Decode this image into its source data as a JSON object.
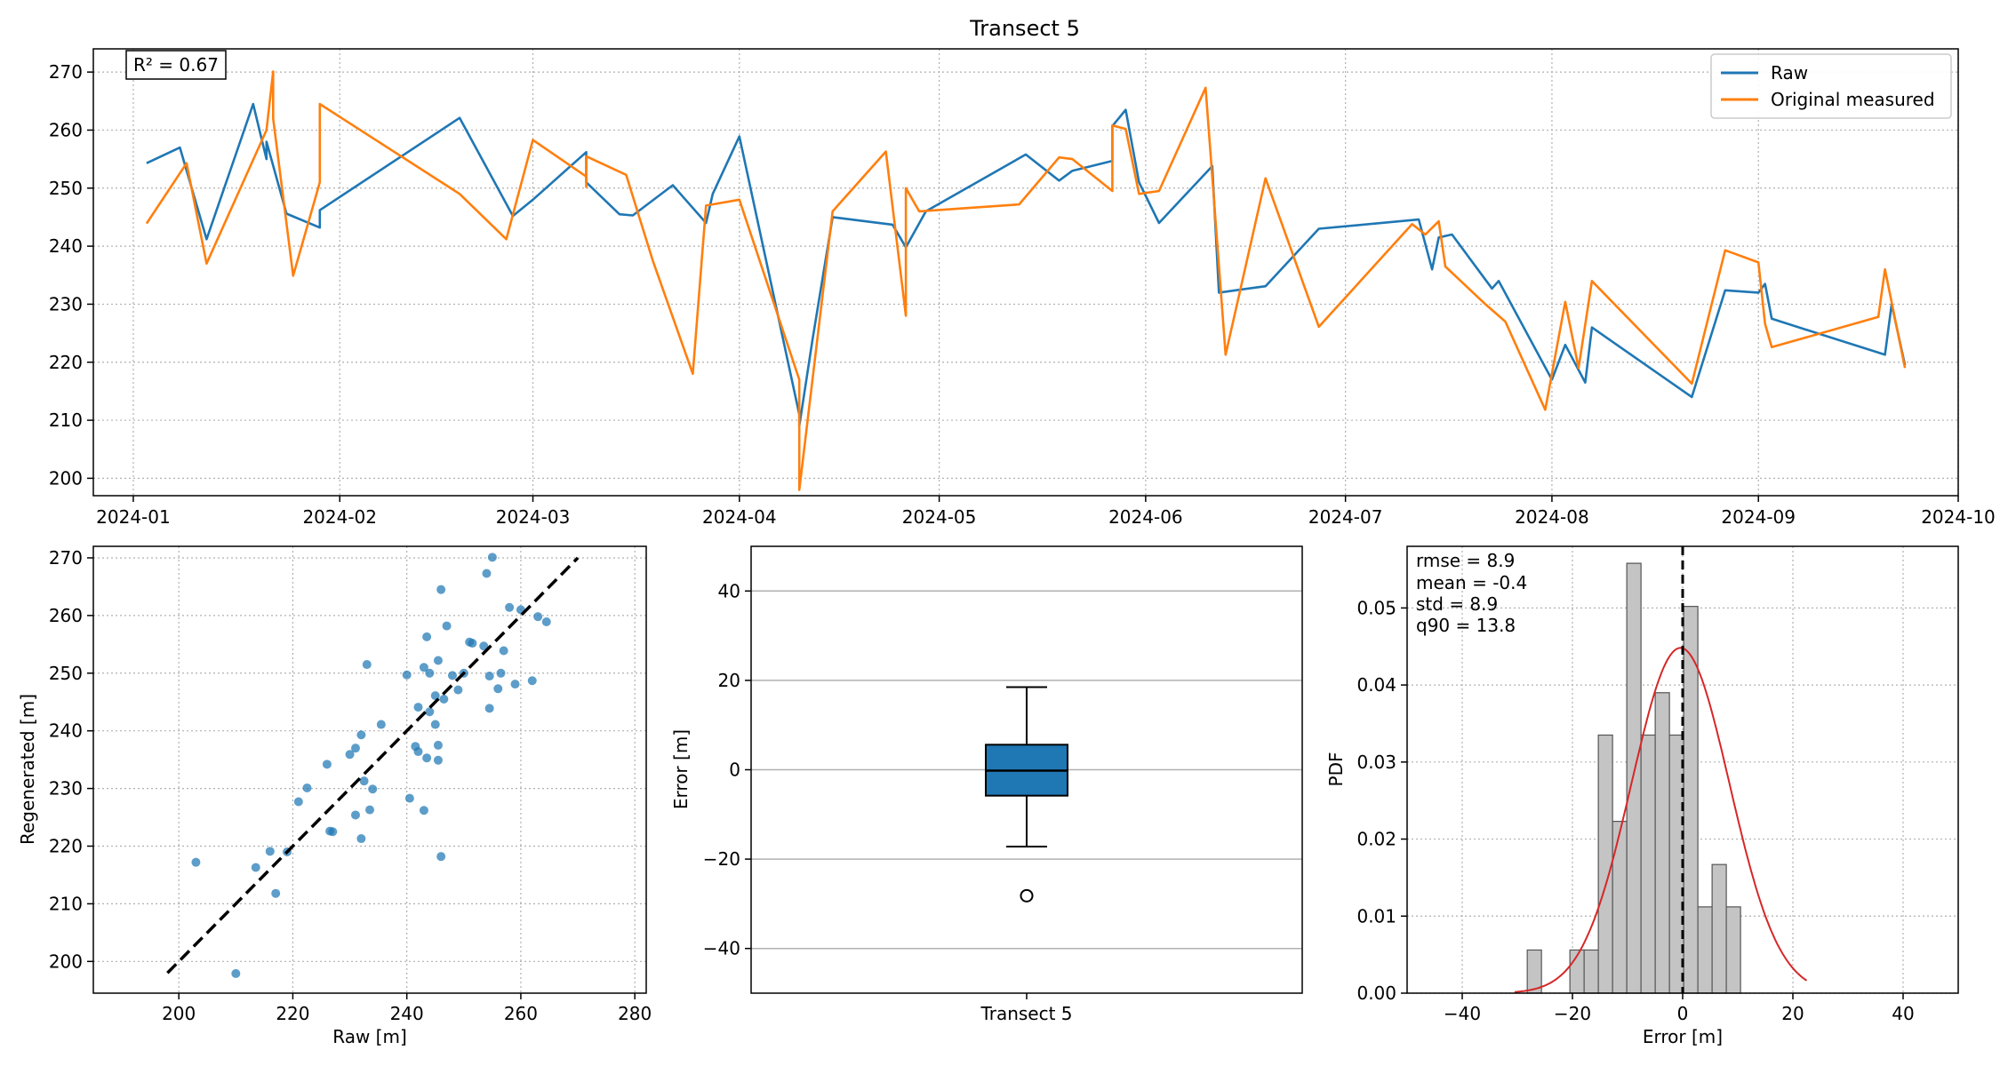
{
  "figure": {
    "title": "Transect 5"
  },
  "chart_data": [
    {
      "type": "line",
      "title": "Transect 5",
      "xlabel": "",
      "ylabel": "",
      "x_axis": "date",
      "xlim": [
        "2023-12-26",
        "2024-10-01"
      ],
      "ylim": [
        197,
        274
      ],
      "xticks": [
        "2024-01-01",
        "2024-02-01",
        "2024-03-01",
        "2024-04-01",
        "2024-05-01",
        "2024-06-01",
        "2024-07-01",
        "2024-08-01",
        "2024-09-01",
        "2024-10-01"
      ],
      "xtick_labels": [
        "2024-01",
        "2024-02",
        "2024-03",
        "2024-04",
        "2024-05",
        "2024-06",
        "2024-07",
        "2024-08",
        "2024-09",
        "2024-10"
      ],
      "yticks": [
        200,
        210,
        220,
        230,
        240,
        250,
        260,
        270
      ],
      "grid": true,
      "legend": "upper right",
      "annotation": "R² = 0.67",
      "series": [
        {
          "name": "Raw",
          "color": "#1f77b4",
          "points": [
            [
              "2024-01-03",
              254.3
            ],
            [
              "2024-01-08",
              257.0
            ],
            [
              "2024-01-12",
              241.2
            ],
            [
              "2024-01-19",
              264.5
            ],
            [
              "2024-01-21",
              255.0
            ],
            [
              "2024-01-21",
              258.0
            ],
            [
              "2024-01-24",
              245.6
            ],
            [
              "2024-01-29",
              243.2
            ],
            [
              "2024-01-29",
              246.2
            ],
            [
              "2024-02-19",
              262.1
            ],
            [
              "2024-02-27",
              245.2
            ],
            [
              "2024-03-01",
              248.0
            ],
            [
              "2024-03-09",
              256.2
            ],
            [
              "2024-03-09",
              251.0
            ],
            [
              "2024-03-14",
              245.5
            ],
            [
              "2024-03-16",
              245.3
            ],
            [
              "2024-03-22",
              250.5
            ],
            [
              "2024-03-27",
              244.0
            ],
            [
              "2024-03-28",
              249.0
            ],
            [
              "2024-04-01",
              258.9
            ],
            [
              "2024-04-10",
              211.0
            ],
            [
              "2024-04-10",
              209.0
            ],
            [
              "2024-04-12",
              224.0
            ],
            [
              "2024-04-15",
              245.0
            ],
            [
              "2024-04-24",
              243.7
            ],
            [
              "2024-04-26",
              239.8
            ],
            [
              "2024-04-29",
              246.0
            ],
            [
              "2024-05-14",
              255.8
            ],
            [
              "2024-05-19",
              251.3
            ],
            [
              "2024-05-21",
              253.0
            ],
            [
              "2024-05-27",
              254.7
            ],
            [
              "2024-05-27",
              260.7
            ],
            [
              "2024-05-29",
              263.5
            ],
            [
              "2024-05-31",
              251.0
            ],
            [
              "2024-06-03",
              244.0
            ],
            [
              "2024-06-11",
              253.8
            ],
            [
              "2024-06-12",
              232.0
            ],
            [
              "2024-06-19",
              233.1
            ],
            [
              "2024-06-27",
              243.0
            ],
            [
              "2024-07-12",
              244.6
            ],
            [
              "2024-07-14",
              236.0
            ],
            [
              "2024-07-15",
              241.5
            ],
            [
              "2024-07-17",
              242.0
            ],
            [
              "2024-07-23",
              232.7
            ],
            [
              "2024-07-24",
              234.0
            ],
            [
              "2024-08-01",
              217.0
            ],
            [
              "2024-08-03",
              223.0
            ],
            [
              "2024-08-06",
              216.5
            ],
            [
              "2024-08-07",
              226.0
            ],
            [
              "2024-08-22",
              214.0
            ],
            [
              "2024-08-27",
              232.4
            ],
            [
              "2024-09-01",
              232.0
            ],
            [
              "2024-09-02",
              233.5
            ],
            [
              "2024-09-03",
              227.5
            ],
            [
              "2024-09-20",
              221.3
            ],
            [
              "2024-09-21",
              230.0
            ],
            [
              "2024-09-23",
              219.5
            ]
          ]
        },
        {
          "name": "Original measured",
          "color": "#ff7f0e",
          "points": [
            [
              "2024-01-03",
              243.9
            ],
            [
              "2024-01-09",
              254.3
            ],
            [
              "2024-01-12",
              237.0
            ],
            [
              "2024-01-21",
              260.0
            ],
            [
              "2024-01-22",
              270.1
            ],
            [
              "2024-01-22",
              262.0
            ],
            [
              "2024-01-25",
              234.9
            ],
            [
              "2024-01-29",
              251.0
            ],
            [
              "2024-01-29",
              264.5
            ],
            [
              "2024-02-19",
              249.0
            ],
            [
              "2024-02-26",
              241.2
            ],
            [
              "2024-03-01",
              258.3
            ],
            [
              "2024-03-09",
              252.0
            ],
            [
              "2024-03-09",
              250.2
            ],
            [
              "2024-03-09",
              255.5
            ],
            [
              "2024-03-15",
              252.3
            ],
            [
              "2024-03-19",
              237.5
            ],
            [
              "2024-03-25",
              218.0
            ],
            [
              "2024-03-27",
              247.0
            ],
            [
              "2024-04-01",
              248.0
            ],
            [
              "2024-04-10",
              217.0
            ],
            [
              "2024-04-10",
              198.0
            ],
            [
              "2024-04-15",
              246.0
            ],
            [
              "2024-04-23",
              256.3
            ],
            [
              "2024-04-26",
              228.0
            ],
            [
              "2024-04-26",
              250.0
            ],
            [
              "2024-04-28",
              246.0
            ],
            [
              "2024-05-13",
              247.2
            ],
            [
              "2024-05-19",
              255.3
            ],
            [
              "2024-05-21",
              255.0
            ],
            [
              "2024-05-27",
              249.5
            ],
            [
              "2024-05-27",
              260.8
            ],
            [
              "2024-05-29",
              260.2
            ],
            [
              "2024-05-31",
              249.0
            ],
            [
              "2024-06-03",
              249.5
            ],
            [
              "2024-06-10",
              267.3
            ],
            [
              "2024-06-13",
              221.3
            ],
            [
              "2024-06-19",
              251.7
            ],
            [
              "2024-06-27",
              226.1
            ],
            [
              "2024-07-11",
              243.8
            ],
            [
              "2024-07-13",
              242.0
            ],
            [
              "2024-07-15",
              244.3
            ],
            [
              "2024-07-16",
              236.5
            ],
            [
              "2024-07-22",
              230.0
            ],
            [
              "2024-07-25",
              227.0
            ],
            [
              "2024-07-31",
              211.8
            ],
            [
              "2024-08-03",
              230.4
            ],
            [
              "2024-08-05",
              219.0
            ],
            [
              "2024-08-07",
              234.0
            ],
            [
              "2024-08-22",
              216.3
            ],
            [
              "2024-08-27",
              239.3
            ],
            [
              "2024-09-01",
              237.2
            ],
            [
              "2024-09-02",
              226.6
            ],
            [
              "2024-09-03",
              222.6
            ],
            [
              "2024-09-19",
              227.8
            ],
            [
              "2024-09-20",
              236.0
            ],
            [
              "2024-09-23",
              219.0
            ]
          ]
        }
      ]
    },
    {
      "type": "scatter",
      "title": "",
      "xlabel": "Raw [m]",
      "ylabel": "Regenerated [m]",
      "xlim": [
        185,
        282
      ],
      "ylim": [
        194.5,
        272
      ],
      "xticks": [
        200,
        220,
        240,
        260,
        280
      ],
      "yticks": [
        200,
        210,
        220,
        230,
        240,
        250,
        260,
        270
      ],
      "grid": true,
      "color": "#1f77b4",
      "reference_line": {
        "style": "dashed",
        "from": [
          198,
          198
        ],
        "to": [
          270,
          270
        ]
      },
      "points": [
        [
          203,
          217.2
        ],
        [
          210,
          197.9
        ],
        [
          213.5,
          216.3
        ],
        [
          216,
          219.1
        ],
        [
          217,
          211.8
        ],
        [
          219,
          219
        ],
        [
          221,
          227.7
        ],
        [
          222.5,
          230.1
        ],
        [
          226,
          234.2
        ],
        [
          226.5,
          222.6
        ],
        [
          227,
          222.5
        ],
        [
          230,
          235.9
        ],
        [
          231,
          237
        ],
        [
          231,
          225.4
        ],
        [
          232,
          239.3
        ],
        [
          232,
          221.3
        ],
        [
          232.5,
          231.3
        ],
        [
          233,
          251.5
        ],
        [
          233.5,
          226.3
        ],
        [
          234,
          229.9
        ],
        [
          235.5,
          241.1
        ],
        [
          240,
          249.7
        ],
        [
          240.5,
          228.3
        ],
        [
          241.5,
          237.3
        ],
        [
          242,
          236.4
        ],
        [
          242,
          244.1
        ],
        [
          243,
          251
        ],
        [
          243,
          226.2
        ],
        [
          243.5,
          256.3
        ],
        [
          243.5,
          235.3
        ],
        [
          244,
          250
        ],
        [
          244,
          243.3
        ],
        [
          245,
          241.1
        ],
        [
          245,
          246.1
        ],
        [
          245.5,
          252.2
        ],
        [
          245.5,
          237.5
        ],
        [
          245.5,
          234.9
        ],
        [
          246,
          264.5
        ],
        [
          246,
          218.2
        ],
        [
          246.5,
          245.5
        ],
        [
          247,
          258.2
        ],
        [
          248,
          249.6
        ],
        [
          249,
          247.1
        ],
        [
          250,
          250
        ],
        [
          251,
          255.4
        ],
        [
          251.5,
          255.2
        ],
        [
          253.5,
          254.7
        ],
        [
          254,
          267.3
        ],
        [
          254.5,
          243.9
        ],
        [
          254.5,
          249.5
        ],
        [
          255,
          270.1
        ],
        [
          256,
          247.3
        ],
        [
          256.5,
          250
        ],
        [
          257,
          253.9
        ],
        [
          258,
          261.4
        ],
        [
          259,
          248.1
        ],
        [
          260,
          261
        ],
        [
          262,
          248.7
        ],
        [
          263,
          259.8
        ],
        [
          264.5,
          258.9
        ]
      ]
    },
    {
      "type": "box",
      "title": "",
      "xlabel": "",
      "ylabel": "Error [m]",
      "ylim": [
        -50,
        50
      ],
      "yticks": [
        -40,
        -20,
        0,
        20,
        40
      ],
      "category": "Transect 5",
      "color": "#1f77b4",
      "whisker_low": -17.2,
      "q1": -5.8,
      "median": -0.2,
      "q3": 5.6,
      "whisker_high": 18.5,
      "outliers": [
        -28.2
      ]
    },
    {
      "type": "bar",
      "title": "",
      "xlabel": "Error [m]",
      "ylabel": "PDF",
      "xlim": [
        -50,
        50
      ],
      "ylim": [
        0,
        0.058
      ],
      "xticks": [
        -40,
        -20,
        0,
        20,
        40
      ],
      "yticks": [
        0.0,
        0.01,
        0.02,
        0.03,
        0.04,
        0.05
      ],
      "ytick_labels": [
        "0.00",
        "0.01",
        "0.02",
        "0.03",
        "0.04",
        "0.05"
      ],
      "grid": true,
      "bin_width": 2.58,
      "bin_edges_start": -28.2,
      "hist_values": [
        0.0056,
        0.0,
        0.0,
        0.0056,
        0.0056,
        0.0335,
        0.0223,
        0.0558,
        0.0335,
        0.039,
        0.0335,
        0.0502,
        0.0112,
        0.0167,
        0.0112
      ],
      "hist_color": "#c4c4c4",
      "mean_line": {
        "x": 0,
        "style": "dashed"
      },
      "normal_fit": {
        "mean": -0.4,
        "std": 8.9,
        "color": "#d62728",
        "x_range": [
          -30.5,
          22.5
        ]
      },
      "stats_text": [
        "rmse = 8.9",
        "mean = -0.4",
        "std = 8.9",
        "q90 = 13.8"
      ]
    }
  ]
}
